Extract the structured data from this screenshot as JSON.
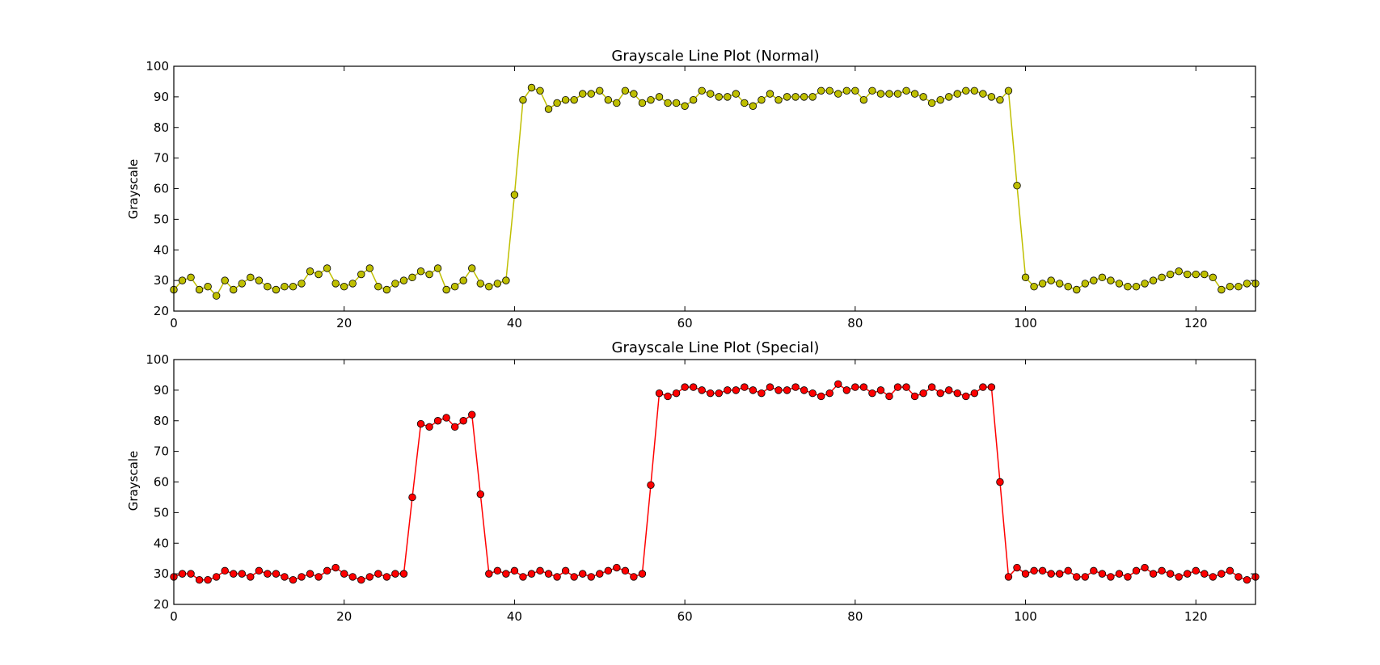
{
  "colors": {
    "normal": "#bfbf00",
    "special": "#ff0000",
    "axes": "#000000",
    "background": "#ffffff"
  },
  "chart_data": [
    {
      "type": "line",
      "title": "Grayscale Line Plot (Normal)",
      "xlabel": "",
      "ylabel": "Grayscale",
      "xlim": [
        0,
        127
      ],
      "ylim": [
        20,
        100
      ],
      "xticks": [
        0,
        20,
        40,
        60,
        80,
        100,
        120
      ],
      "yticks": [
        20,
        30,
        40,
        50,
        60,
        70,
        80,
        90,
        100
      ],
      "xtick_labels": [
        "0",
        "20",
        "40",
        "60",
        "80",
        "100",
        "120"
      ],
      "ytick_labels": [
        "20",
        "30",
        "40",
        "50",
        "60",
        "70",
        "80",
        "90",
        "100"
      ],
      "grid": false,
      "marker": "circle",
      "series": [
        {
          "color": "#bfbf00",
          "x": [
            0,
            1,
            2,
            3,
            4,
            5,
            6,
            7,
            8,
            9,
            10,
            11,
            12,
            13,
            14,
            15,
            16,
            17,
            18,
            19,
            20,
            21,
            22,
            23,
            24,
            25,
            26,
            27,
            28,
            29,
            30,
            31,
            32,
            33,
            34,
            35,
            36,
            37,
            38,
            39,
            40,
            41,
            42,
            43,
            44,
            45,
            46,
            47,
            48,
            49,
            50,
            51,
            52,
            53,
            54,
            55,
            56,
            57,
            58,
            59,
            60,
            61,
            62,
            63,
            64,
            65,
            66,
            67,
            68,
            69,
            70,
            71,
            72,
            73,
            74,
            75,
            76,
            77,
            78,
            79,
            80,
            81,
            82,
            83,
            84,
            85,
            86,
            87,
            88,
            89,
            90,
            91,
            92,
            93,
            94,
            95,
            96,
            97,
            98,
            99,
            100,
            101,
            102,
            103,
            104,
            105,
            106,
            107,
            108,
            109,
            110,
            111,
            112,
            113,
            114,
            115,
            116,
            117,
            118,
            119,
            120,
            121,
            122,
            123,
            124,
            125,
            126,
            127
          ],
          "values": [
            27,
            30,
            31,
            27,
            28,
            25,
            30,
            27,
            29,
            31,
            30,
            28,
            27,
            28,
            28,
            29,
            33,
            32,
            34,
            29,
            28,
            29,
            32,
            34,
            28,
            27,
            29,
            30,
            31,
            33,
            32,
            34,
            27,
            28,
            30,
            34,
            29,
            28,
            29,
            30,
            58,
            89,
            93,
            92,
            86,
            88,
            89,
            89,
            91,
            91,
            92,
            89,
            88,
            92,
            91,
            88,
            89,
            90,
            88,
            88,
            87,
            89,
            92,
            91,
            90,
            90,
            91,
            88,
            87,
            89,
            91,
            89,
            90,
            90,
            90,
            90,
            92,
            92,
            91,
            92,
            92,
            89,
            92,
            91,
            91,
            91,
            92,
            91,
            90,
            88,
            89,
            90,
            91,
            92,
            92,
            91,
            90,
            89,
            92,
            61,
            31,
            28,
            29,
            30,
            29,
            28,
            27,
            29,
            30,
            31,
            30,
            29,
            28,
            28,
            29,
            30,
            31,
            32,
            33,
            32,
            32,
            32,
            31,
            27,
            28,
            28,
            29,
            29
          ]
        }
      ]
    },
    {
      "type": "line",
      "title": "Grayscale Line Plot (Special)",
      "xlabel": "",
      "ylabel": "Grayscale",
      "xlim": [
        0,
        127
      ],
      "ylim": [
        20,
        100
      ],
      "xticks": [
        0,
        20,
        40,
        60,
        80,
        100,
        120
      ],
      "yticks": [
        20,
        30,
        40,
        50,
        60,
        70,
        80,
        90,
        100
      ],
      "xtick_labels": [
        "0",
        "20",
        "40",
        "60",
        "80",
        "100",
        "120"
      ],
      "ytick_labels": [
        "20",
        "30",
        "40",
        "50",
        "60",
        "70",
        "80",
        "90",
        "100"
      ],
      "grid": false,
      "marker": "circle",
      "series": [
        {
          "color": "#ff0000",
          "x": [
            0,
            1,
            2,
            3,
            4,
            5,
            6,
            7,
            8,
            9,
            10,
            11,
            12,
            13,
            14,
            15,
            16,
            17,
            18,
            19,
            20,
            21,
            22,
            23,
            24,
            25,
            26,
            27,
            28,
            29,
            30,
            31,
            32,
            33,
            34,
            35,
            36,
            37,
            38,
            39,
            40,
            41,
            42,
            43,
            44,
            45,
            46,
            47,
            48,
            49,
            50,
            51,
            52,
            53,
            54,
            55,
            56,
            57,
            58,
            59,
            60,
            61,
            62,
            63,
            64,
            65,
            66,
            67,
            68,
            69,
            70,
            71,
            72,
            73,
            74,
            75,
            76,
            77,
            78,
            79,
            80,
            81,
            82,
            83,
            84,
            85,
            86,
            87,
            88,
            89,
            90,
            91,
            92,
            93,
            94,
            95,
            96,
            97,
            98,
            99,
            100,
            101,
            102,
            103,
            104,
            105,
            106,
            107,
            108,
            109,
            110,
            111,
            112,
            113,
            114,
            115,
            116,
            117,
            118,
            119,
            120,
            121,
            122,
            123,
            124,
            125,
            126,
            127
          ],
          "values": [
            29,
            30,
            30,
            28,
            28,
            29,
            31,
            30,
            30,
            29,
            31,
            30,
            30,
            29,
            28,
            29,
            30,
            29,
            31,
            32,
            30,
            29,
            28,
            29,
            30,
            29,
            30,
            30,
            55,
            79,
            78,
            80,
            81,
            78,
            80,
            82,
            56,
            30,
            31,
            30,
            31,
            29,
            30,
            31,
            30,
            29,
            31,
            29,
            30,
            29,
            30,
            31,
            32,
            31,
            29,
            30,
            59,
            89,
            88,
            89,
            91,
            91,
            90,
            89,
            89,
            90,
            90,
            91,
            90,
            89,
            91,
            90,
            90,
            91,
            90,
            89,
            88,
            89,
            92,
            90,
            91,
            91,
            89,
            90,
            88,
            91,
            91,
            88,
            89,
            91,
            89,
            90,
            89,
            88,
            89,
            91,
            91,
            60,
            29,
            32,
            30,
            31,
            31,
            30,
            30,
            31,
            29,
            29,
            31,
            30,
            29,
            30,
            29,
            31,
            32,
            30,
            31,
            30,
            29,
            30,
            31,
            30,
            29,
            30,
            31,
            29,
            28,
            29
          ]
        }
      ]
    }
  ]
}
